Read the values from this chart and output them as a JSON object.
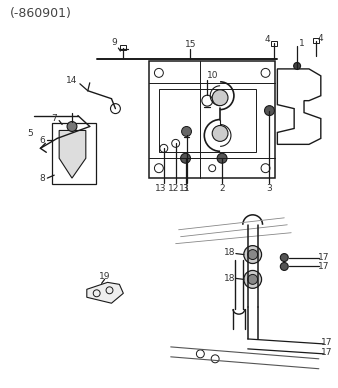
{
  "title": "(-860901)",
  "bg_color": "#ffffff",
  "line_color": "#1a1a1a",
  "text_color": "#333333",
  "figsize": [
    3.38,
    3.88
  ],
  "dpi": 100
}
